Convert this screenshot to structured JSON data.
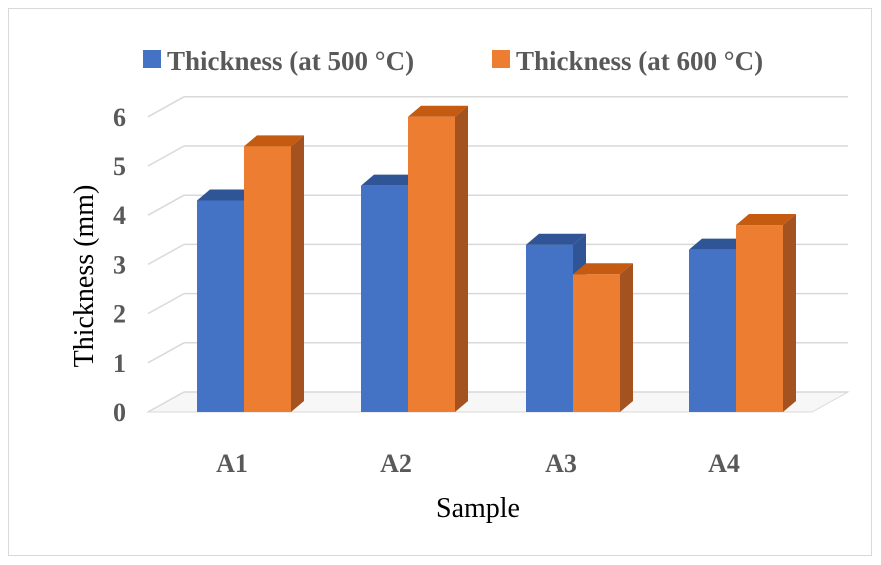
{
  "chart_data": {
    "type": "bar",
    "categories": [
      "A1",
      "A2",
      "A3",
      "A4"
    ],
    "series": [
      {
        "name": "Thickness (at 500 °C)",
        "values": [
          4.3,
          4.6,
          3.4,
          3.3
        ],
        "color": "#4472C4",
        "side_color": "#2F5597",
        "top_color": "#2F5597"
      },
      {
        "name": "Thickness (at 600 °C)",
        "values": [
          5.4,
          6.0,
          2.8,
          3.8
        ],
        "color": "#ED7D31",
        "side_color": "#A35220",
        "top_color": "#C55A11"
      }
    ],
    "xlabel": "Sample",
    "ylabel": "Thickness (mm)",
    "yticks": [
      "0",
      "1",
      "2",
      "3",
      "4",
      "5",
      "6"
    ],
    "ylim": [
      0,
      6
    ],
    "grid": true,
    "gridline_color": "#d9d9d9",
    "legend_position": "top",
    "style": "3d-clustered-column"
  }
}
